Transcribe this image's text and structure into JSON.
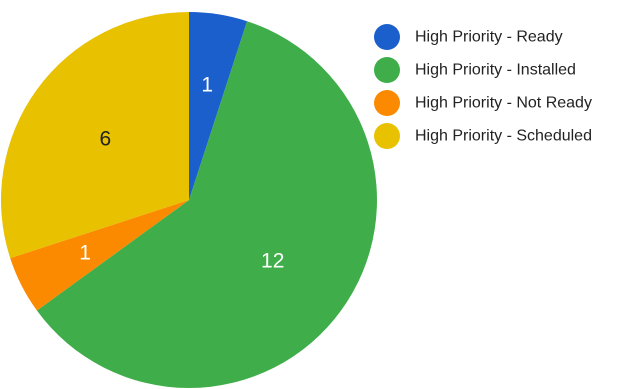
{
  "chart_data": {
    "type": "pie",
    "categories": [
      "High Priority - Ready",
      "High Priority - Installed",
      "High Priority - Not Ready",
      "High Priority - Scheduled"
    ],
    "values": [
      1,
      12,
      1,
      6
    ],
    "colors": [
      "#1a5fcc",
      "#3fae4a",
      "#fb8a00",
      "#e8c100"
    ],
    "label_colors": [
      "#ffffff",
      "#ffffff",
      "#ffffff",
      "#222222"
    ],
    "legend_position": "right"
  }
}
